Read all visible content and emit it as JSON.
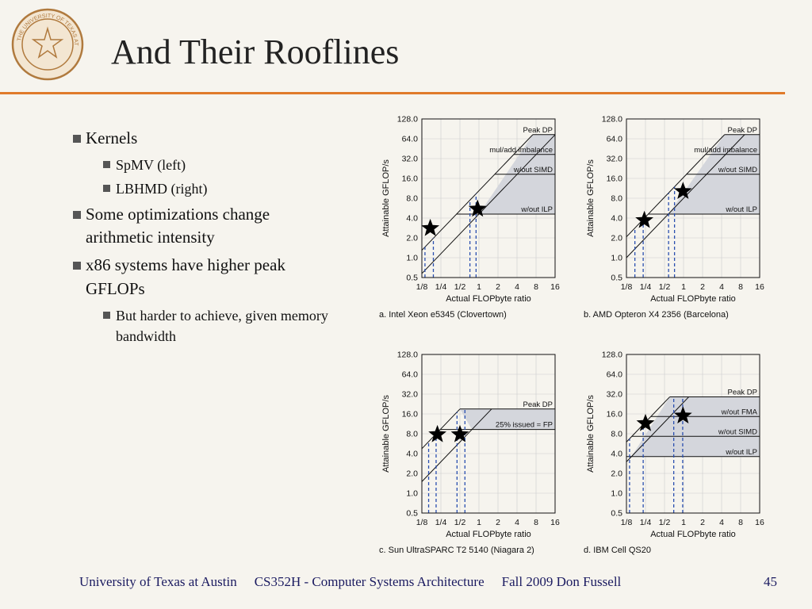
{
  "slide": {
    "title": "And Their Rooflines",
    "seal_text": "THE UNIVERSITY OF TEXAS AT AUSTIN",
    "bullets": [
      {
        "text": "Kernels",
        "sub": [
          "SpMV (left)",
          "LBHMD (right)"
        ]
      },
      {
        "text": "Some optimizations change arithmetic intensity",
        "sub": []
      },
      {
        "text": "x86 systems have higher peak GFLOPs",
        "sub": [
          "But harder to achieve, given memory bandwidth"
        ]
      }
    ],
    "footer": {
      "institution": "University of Texas at Austin",
      "course": "CS352H  -   Computer Systems Architecture",
      "term": "Fall 2009   Don Fussell",
      "page": "45"
    }
  },
  "chart_data": [
    {
      "type": "line",
      "caption": "a. Intel Xeon e5345 (Clovertown)",
      "xlabel": "Actual FLOPbyte ratio",
      "ylabel": "Attainable GFLOP/s",
      "x_ticks": [
        "1/8",
        "1/4",
        "1/2",
        "1",
        "2",
        "4",
        "8",
        "16"
      ],
      "y_ticks": [
        "0.5",
        "1.0",
        "2.0",
        "4.0",
        "8.0",
        "16.0",
        "32.0",
        "64.0",
        "128.0"
      ],
      "xlim": [
        0.125,
        16
      ],
      "ylim": [
        0.5,
        128
      ],
      "scale": "log2",
      "rooflines": [
        {
          "name": "Peak DP",
          "y": 74
        },
        {
          "name": "mul/add imbalance",
          "y": 37
        },
        {
          "name": "w/out SIMD",
          "y": 18.5
        },
        {
          "name": "w/out ILP",
          "y": 4.6
        }
      ],
      "bandwidth_lines": [
        {
          "slope_gb_s": 10.4
        },
        {
          "slope_gb_s": 4.6
        }
      ],
      "stars": [
        {
          "x": 0.17,
          "y": 2.8
        },
        {
          "x": 0.95,
          "y": 5.5
        }
      ],
      "dashed_x": [
        0.14,
        0.19,
        0.72,
        0.9
      ]
    },
    {
      "type": "line",
      "caption": "b. AMD Opteron X4 2356 (Barcelona)",
      "xlabel": "Actual FLOPbyte ratio",
      "ylabel": "Attainable GFLOP/s",
      "x_ticks": [
        "1/8",
        "1/4",
        "1/2",
        "1",
        "2",
        "4",
        "8",
        "16"
      ],
      "y_ticks": [
        "0.5",
        "1.0",
        "2.0",
        "4.0",
        "8.0",
        "16.0",
        "32.0",
        "64.0",
        "128.0"
      ],
      "xlim": [
        0.125,
        16
      ],
      "ylim": [
        0.5,
        128
      ],
      "scale": "log2",
      "rooflines": [
        {
          "name": "Peak DP",
          "y": 74
        },
        {
          "name": "mul/add imbalance",
          "y": 37
        },
        {
          "name": "w/out SIMD",
          "y": 18.5
        },
        {
          "name": "w/out ILP",
          "y": 4.6
        }
      ],
      "bandwidth_lines": [
        {
          "slope_gb_s": 16.6
        },
        {
          "slope_gb_s": 8.0
        }
      ],
      "stars": [
        {
          "x": 0.24,
          "y": 3.7
        },
        {
          "x": 0.98,
          "y": 10.2
        }
      ],
      "dashed_x": [
        0.17,
        0.23,
        0.58,
        0.72
      ]
    },
    {
      "type": "line",
      "caption": "c. Sun UltraSPARC T2 5140 (Niagara 2)",
      "xlabel": "Actual FLOPbyte ratio",
      "ylabel": "Attainable GFLOP/s",
      "x_ticks": [
        "1/8",
        "1/4",
        "1/2",
        "1",
        "2",
        "4",
        "8",
        "16"
      ],
      "y_ticks": [
        "0.5",
        "1.0",
        "2.0",
        "4.0",
        "8.0",
        "16.0",
        "32.0",
        "64.0",
        "128.0"
      ],
      "xlim": [
        0.125,
        16
      ],
      "ylim": [
        0.5,
        128
      ],
      "scale": "log2",
      "rooflines": [
        {
          "name": "Peak DP",
          "y": 19
        },
        {
          "name": "25% issued = FP",
          "y": 9.3
        }
      ],
      "bandwidth_lines": [
        {
          "slope_gb_s": 38
        },
        {
          "slope_gb_s": 12
        }
      ],
      "stars": [
        {
          "x": 0.22,
          "y": 7.8
        },
        {
          "x": 0.5,
          "y": 7.8
        }
      ],
      "dashed_x": [
        0.16,
        0.21,
        0.45,
        0.6
      ]
    },
    {
      "type": "line",
      "caption": "d. IBM Cell QS20",
      "xlabel": "Actual FLOPbyte ratio",
      "ylabel": "Attainable GFLOP/s",
      "x_ticks": [
        "1/8",
        "1/4",
        "1/2",
        "1",
        "2",
        "4",
        "8",
        "16"
      ],
      "y_ticks": [
        "0.5",
        "1.0",
        "2.0",
        "4.0",
        "8.0",
        "16.0",
        "32.0",
        "64.0",
        "128.0"
      ],
      "xlim": [
        0.125,
        16
      ],
      "ylim": [
        0.5,
        128
      ],
      "scale": "log2",
      "rooflines": [
        {
          "name": "Peak DP",
          "y": 29
        },
        {
          "name": "w/out FMA",
          "y": 14.6
        },
        {
          "name": "w/out SIMD",
          "y": 7.3
        },
        {
          "name": "w/out ILP",
          "y": 3.6
        }
      ],
      "bandwidth_lines": [
        {
          "slope_gb_s": 48
        },
        {
          "slope_gb_s": 24
        }
      ],
      "stars": [
        {
          "x": 0.25,
          "y": 11.5
        },
        {
          "x": 0.98,
          "y": 15
        }
      ],
      "dashed_x": [
        0.14,
        0.23,
        0.7,
        0.97
      ]
    }
  ]
}
